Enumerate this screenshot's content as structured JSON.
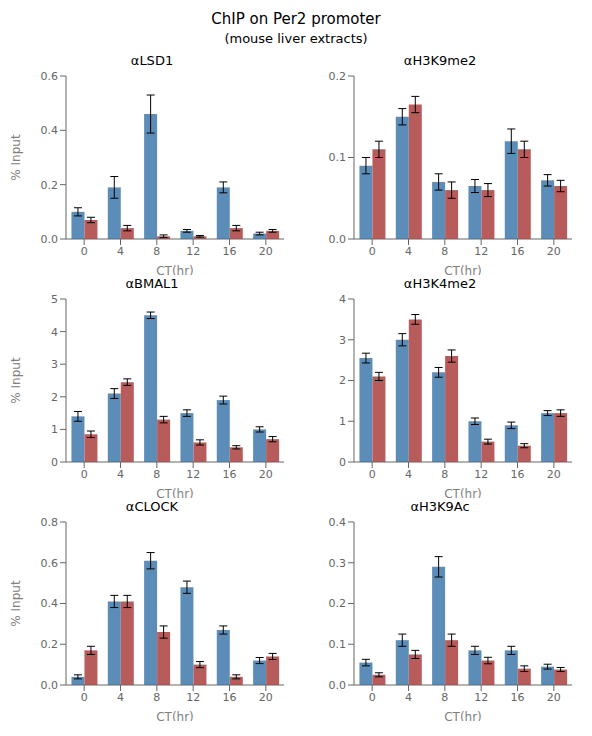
{
  "title": "ChIP on Per2 promoter",
  "subtitle": "(mouse liver extracts)",
  "chart_data": [
    {
      "type": "bar",
      "title": "αLSD1",
      "categories": [
        "0",
        "4",
        "8",
        "12",
        "16",
        "20"
      ],
      "xlabel": "CT(hr)",
      "ylabel": "% Input",
      "ylim": [
        0,
        0.6
      ],
      "yticks": [
        {
          "value": 0,
          "label": "0.0"
        },
        0.2,
        0.4,
        0.6
      ],
      "grid": false,
      "series": [
        {
          "color": "#5b8db8",
          "values": [
            0.1,
            0.19,
            0.46,
            0.03,
            0.19,
            0.02
          ],
          "error": [
            0.015,
            0.04,
            0.07,
            0.005,
            0.02,
            0.005
          ]
        },
        {
          "color": "#b85b5b",
          "values": [
            0.07,
            0.04,
            0.01,
            0.01,
            0.04,
            0.03
          ],
          "error": [
            0.01,
            0.01,
            0.005,
            0.003,
            0.01,
            0.005
          ]
        }
      ]
    },
    {
      "type": "bar",
      "title": "αH3K9me2",
      "categories": [
        "0",
        "4",
        "8",
        "12",
        "16",
        "20"
      ],
      "xlabel": "CT(hr)",
      "ylim": [
        0,
        0.2
      ],
      "yticks": [
        {
          "value": 0,
          "label": "0.0"
        },
        0.1,
        0.2
      ],
      "grid": false,
      "series": [
        {
          "color": "#5b8db8",
          "values": [
            0.09,
            0.15,
            0.07,
            0.065,
            0.12,
            0.072
          ],
          "error": [
            0.01,
            0.01,
            0.01,
            0.008,
            0.015,
            0.007
          ]
        },
        {
          "color": "#b85b5b",
          "values": [
            0.11,
            0.165,
            0.06,
            0.06,
            0.11,
            0.065
          ],
          "error": [
            0.01,
            0.01,
            0.01,
            0.008,
            0.01,
            0.007
          ]
        }
      ]
    },
    {
      "type": "bar",
      "title": "αBMAL1",
      "categories": [
        "0",
        "4",
        "8",
        "12",
        "16",
        "20"
      ],
      "xlabel": "CT(hr)",
      "ylabel": "% Input",
      "ylim": [
        0,
        5
      ],
      "yticks": [
        0,
        1,
        2,
        3,
        4,
        5
      ],
      "grid": false,
      "series": [
        {
          "color": "#5b8db8",
          "values": [
            1.4,
            2.1,
            4.5,
            1.5,
            1.9,
            1.0
          ],
          "error": [
            0.15,
            0.15,
            0.1,
            0.1,
            0.12,
            0.08
          ]
        },
        {
          "color": "#b85b5b",
          "values": [
            0.85,
            2.45,
            1.3,
            0.6,
            0.45,
            0.7
          ],
          "error": [
            0.1,
            0.1,
            0.1,
            0.08,
            0.05,
            0.08
          ]
        }
      ]
    },
    {
      "type": "bar",
      "title": "αH3K4me2",
      "categories": [
        "0",
        "4",
        "8",
        "12",
        "16",
        "20"
      ],
      "xlabel": "CT(hr)",
      "ylim": [
        0,
        4
      ],
      "yticks": [
        0,
        1,
        2,
        3,
        4
      ],
      "grid": false,
      "series": [
        {
          "color": "#5b8db8",
          "values": [
            2.55,
            3.0,
            2.2,
            1.0,
            0.9,
            1.2
          ],
          "error": [
            0.12,
            0.15,
            0.12,
            0.08,
            0.08,
            0.06
          ]
        },
        {
          "color": "#b85b5b",
          "values": [
            2.1,
            3.5,
            2.6,
            0.5,
            0.4,
            1.2
          ],
          "error": [
            0.1,
            0.12,
            0.15,
            0.06,
            0.05,
            0.08
          ]
        }
      ]
    },
    {
      "type": "bar",
      "title": "αCLOCK",
      "categories": [
        "0",
        "4",
        "8",
        "12",
        "16",
        "20"
      ],
      "xlabel": "CT(hr)",
      "ylabel": "% Input",
      "ylim": [
        0,
        0.8
      ],
      "yticks": [
        {
          "value": 0,
          "label": "0.0"
        },
        0.2,
        0.4,
        0.6,
        0.8
      ],
      "grid": false,
      "series": [
        {
          "color": "#5b8db8",
          "values": [
            0.04,
            0.41,
            0.61,
            0.48,
            0.27,
            0.12
          ],
          "error": [
            0.01,
            0.03,
            0.04,
            0.03,
            0.02,
            0.015
          ]
        },
        {
          "color": "#b85b5b",
          "values": [
            0.17,
            0.41,
            0.26,
            0.1,
            0.04,
            0.14
          ],
          "error": [
            0.02,
            0.03,
            0.03,
            0.015,
            0.01,
            0.015
          ]
        }
      ]
    },
    {
      "type": "bar",
      "title": "αH3K9Ac",
      "categories": [
        "0",
        "4",
        "8",
        "12",
        "16",
        "20"
      ],
      "xlabel": "CT(hr)",
      "ylim": [
        0,
        0.4
      ],
      "yticks": [
        {
          "value": 0,
          "label": "0.0"
        },
        0.1,
        0.2,
        0.3,
        0.4
      ],
      "grid": false,
      "series": [
        {
          "color": "#5b8db8",
          "values": [
            0.055,
            0.11,
            0.29,
            0.085,
            0.085,
            0.045
          ],
          "error": [
            0.008,
            0.015,
            0.025,
            0.01,
            0.01,
            0.006
          ]
        },
        {
          "color": "#b85b5b",
          "values": [
            0.025,
            0.075,
            0.11,
            0.06,
            0.04,
            0.038
          ],
          "error": [
            0.005,
            0.01,
            0.015,
            0.008,
            0.007,
            0.005
          ]
        }
      ]
    }
  ]
}
